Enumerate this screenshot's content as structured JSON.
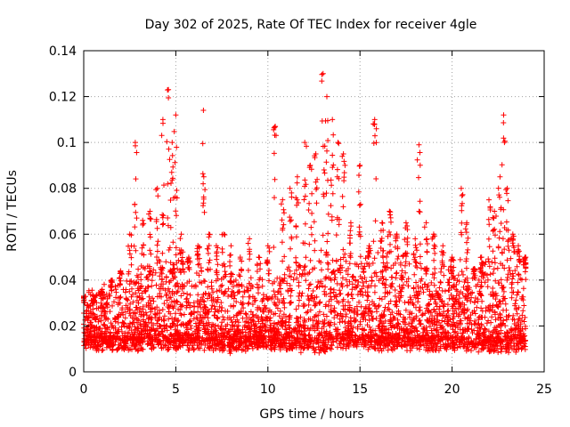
{
  "chart_data": {
    "type": "scatter",
    "title": "Day 302 of 2025, Rate Of TEC Index for receiver 4gle",
    "xlabel": "GPS time / hours",
    "ylabel": "ROTI / TECUs",
    "xlim": [
      0,
      25
    ],
    "ylim": [
      0,
      0.14
    ],
    "xticks": [
      "0",
      "5",
      "10",
      "15",
      "20",
      "25"
    ],
    "yticks": [
      "0",
      "0.02",
      "0.04",
      "0.06",
      "0.08",
      "0.1",
      "0.12",
      "0.14"
    ],
    "grid": true,
    "marker": "+",
    "color": "#ff0000",
    "series": [
      {
        "x": [
          0.0,
          0.5,
          1.0,
          1.5,
          2.0,
          2.5,
          2.8,
          3.2,
          3.6,
          4.0,
          4.3,
          4.6,
          4.8,
          5.0,
          5.3,
          5.7,
          6.2,
          6.5,
          6.8,
          7.2,
          7.6,
          8.0,
          8.5,
          9.0,
          9.5,
          10.0,
          10.4,
          10.8,
          11.2,
          11.6,
          12.0,
          12.3,
          12.6,
          13.0,
          13.2,
          13.5,
          13.8,
          14.1,
          14.5,
          15.0,
          15.5,
          15.8,
          16.2,
          16.6,
          17.0,
          17.5,
          18.0,
          18.2,
          18.6,
          19.0,
          19.5,
          20.0,
          20.5,
          20.8,
          21.2,
          21.6,
          22.0,
          22.3,
          22.6,
          22.8,
          23.0,
          23.3,
          23.6,
          24.0
        ],
        "y": [
          0.033,
          0.03,
          0.036,
          0.04,
          0.044,
          0.06,
          0.1,
          0.066,
          0.07,
          0.08,
          0.11,
          0.123,
          0.1,
          0.112,
          0.06,
          0.05,
          0.055,
          0.114,
          0.06,
          0.055,
          0.06,
          0.055,
          0.05,
          0.058,
          0.05,
          0.055,
          0.107,
          0.075,
          0.08,
          0.085,
          0.1,
          0.09,
          0.095,
          0.13,
          0.12,
          0.11,
          0.1,
          0.095,
          0.065,
          0.09,
          0.055,
          0.11,
          0.065,
          0.07,
          0.06,
          0.065,
          0.058,
          0.099,
          0.065,
          0.06,
          0.055,
          0.05,
          0.08,
          0.065,
          0.045,
          0.05,
          0.075,
          0.07,
          0.085,
          0.112,
          0.08,
          0.06,
          0.055,
          0.05
        ]
      }
    ],
    "baseline_band": {
      "x": [
        0,
        1,
        2,
        3,
        4,
        5,
        6,
        7,
        8,
        9,
        10,
        11,
        12,
        13,
        14,
        15,
        16,
        17,
        18,
        19,
        20,
        21,
        22,
        23,
        24
      ],
      "low": [
        0.01,
        0.009,
        0.009,
        0.009,
        0.009,
        0.009,
        0.009,
        0.009,
        0.008,
        0.009,
        0.009,
        0.009,
        0.008,
        0.008,
        0.01,
        0.01,
        0.009,
        0.009,
        0.009,
        0.009,
        0.009,
        0.009,
        0.008,
        0.008,
        0.009
      ],
      "high": [
        0.03,
        0.033,
        0.035,
        0.04,
        0.045,
        0.045,
        0.042,
        0.04,
        0.038,
        0.035,
        0.038,
        0.04,
        0.045,
        0.05,
        0.047,
        0.045,
        0.05,
        0.048,
        0.045,
        0.042,
        0.04,
        0.04,
        0.045,
        0.048,
        0.045
      ]
    }
  }
}
